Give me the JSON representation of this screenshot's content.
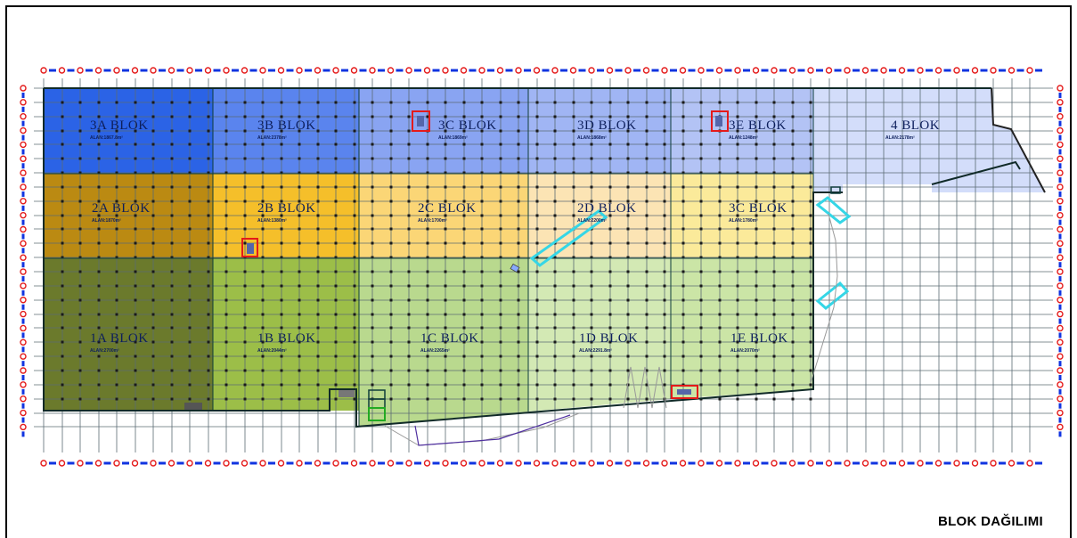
{
  "drawing_title": "BLOK DAĞILIMI",
  "blocks": [
    {
      "id": "3A",
      "label": "3A  BLOK",
      "area": "ALAN:1867.8m²",
      "color": "#2b63e6"
    },
    {
      "id": "3B",
      "label": "3B  BLOK",
      "area": "ALAN:2378m²",
      "color": "#5a84ee"
    },
    {
      "id": "3C",
      "label": "3C  BLOK",
      "area": "ALAN:1869m²",
      "color": "#89a4f2"
    },
    {
      "id": "3D",
      "label": "3D  BLOK",
      "area": "ALAN:1868m²",
      "color": "#a0b5f4"
    },
    {
      "id": "3E",
      "label": "3E  BLOK",
      "area": "ALAN:1248m²",
      "color": "#b3c3f5"
    },
    {
      "id": "4",
      "label": "4  BLOK",
      "area": "ALAN:2178m²",
      "color": "#d3ddfa"
    },
    {
      "id": "2A",
      "label": "2A  BLOK",
      "area": "ALAN:1870m²",
      "color": "#bb8a12"
    },
    {
      "id": "2B",
      "label": "2B  BLOK",
      "area": "ALAN:1380m²",
      "color": "#f5bf2a"
    },
    {
      "id": "2C",
      "label": "2C  BLOK",
      "area": "ALAN:1700m²",
      "color": "#fbd676"
    },
    {
      "id": "2D",
      "label": "2D  BLOK",
      "area": "ALAN:2200m²",
      "color": "#fce4b4"
    },
    {
      "id": "3C2",
      "label": "3C  BLOK",
      "area": "ALAN:1780m²",
      "color": "#fbea9a"
    },
    {
      "id": "1A",
      "label": "1A  BLOK",
      "area": "ALAN:2700m²",
      "color": "#6b7a2c"
    },
    {
      "id": "1B",
      "label": "1B  BLOK",
      "area": "ALAN:2044m²",
      "color": "#9cbe48"
    },
    {
      "id": "1C",
      "label": "1C  BLOK",
      "area": "ALAN:2265m²",
      "color": "#b9d98e"
    },
    {
      "id": "1D",
      "label": "1D  BLOK",
      "area": "ALAN:2291.8m²",
      "color": "#d3e9b4"
    },
    {
      "id": "1E",
      "label": "1E  BLOK",
      "area": "ALAN:2070m²",
      "color": "#cbe5a6"
    }
  ],
  "colors": {
    "grid": "#5b6b73",
    "outline": "#0f3d3a",
    "marker_red": "#e41a1a",
    "marker_blue": "#1034e0",
    "cyan": "#35d6e6"
  }
}
